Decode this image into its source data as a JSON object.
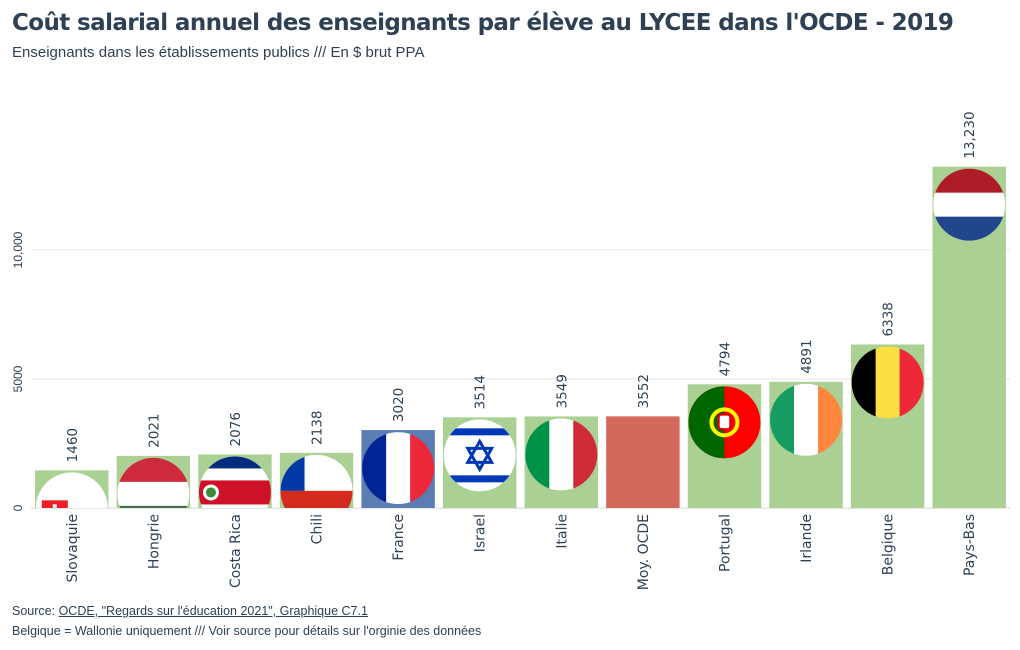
{
  "title": "Coût salarial annuel des enseignants par élève au LYCEE dans l'OCDE - 2019",
  "subtitle": "Enseignants dans les établissements publics /// En $ brut PPA",
  "footer": {
    "source_prefix": "Source: ",
    "source_link": "OCDE, \"Regards sur l'éducation 2021\", Graphique C7.1",
    "note": "Belgique = Wallonie uniquement /// Voir source pour détails sur l'orginie des données"
  },
  "colors": {
    "default_bar": "#aad094",
    "highlight_bar": "#5a7db4",
    "average_bar": "#d4685b",
    "grid": "#e6e6e6",
    "text": "#2e4154"
  },
  "chart_data": {
    "type": "bar",
    "title": "Coût salarial annuel des enseignants par élève au LYCEE dans l'OCDE - 2019",
    "xlabel": "",
    "ylabel": "",
    "ylim": [
      0,
      13500
    ],
    "yticks": [
      0,
      5000,
      10000
    ],
    "ytick_labels": [
      "0",
      "5000",
      "10,000"
    ],
    "grid": true,
    "categories": [
      "Slovaquie",
      "Hongrie",
      "Costa Rica",
      "Chili",
      "France",
      "Israel",
      "Italie",
      "Moy. OCDE",
      "Portugal",
      "Irlande",
      "Belgique",
      "Pays-Bas"
    ],
    "values": [
      1460,
      2021,
      2076,
      2138,
      3020,
      3514,
      3549,
      3552,
      4794,
      4891,
      6338,
      13230
    ],
    "value_labels": [
      "1460",
      "2021",
      "2076",
      "2138",
      "3020",
      "3514",
      "3549",
      "3552",
      "4794",
      "4891",
      "6338",
      "13,230"
    ],
    "bar_roles": [
      "default",
      "default",
      "default",
      "default",
      "highlight",
      "default",
      "default",
      "average",
      "default",
      "default",
      "default",
      "default"
    ],
    "flags": [
      "slovakia-flag",
      "hungary-flag",
      "costa-rica-flag",
      "chile-flag",
      "france-flag",
      "israel-flag",
      "italy-flag",
      "",
      "portugal-flag",
      "ireland-flag",
      "belgium-flag",
      "netherlands-flag"
    ]
  }
}
